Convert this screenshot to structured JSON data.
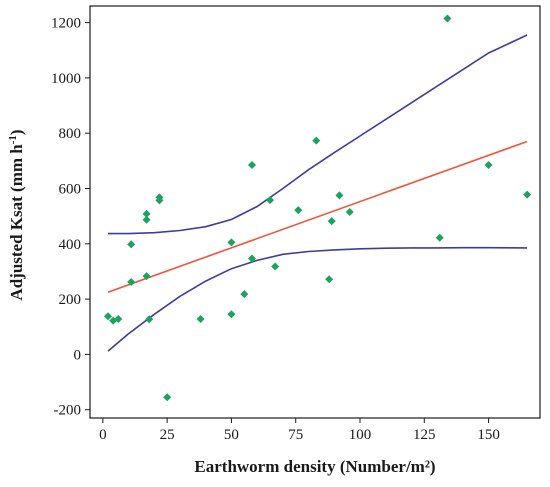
{
  "chart_data": {
    "type": "scatter",
    "xlabel": "Earthworm density (Number/m²)",
    "ylabel_main": "Adjusted Ksat (mm h",
    "ylabel_sup": "-1",
    "ylabel_close": ")",
    "xlim": [
      -5,
      170
    ],
    "ylim": [
      -230,
      1260
    ],
    "x_ticks": [
      0,
      25,
      50,
      75,
      100,
      125,
      150
    ],
    "y_ticks": [
      -200,
      0,
      200,
      400,
      600,
      800,
      1000,
      1200
    ],
    "x_tick_labels": [
      "0",
      "25",
      "50",
      "75",
      "100",
      "125",
      "150"
    ],
    "y_tick_labels": [
      "-200",
      "0",
      "200",
      "400",
      "600",
      "800",
      "1000",
      "1200"
    ],
    "grid": false,
    "points": [
      {
        "x": 2,
        "y": 138
      },
      {
        "x": 4,
        "y": 122
      },
      {
        "x": 6,
        "y": 128
      },
      {
        "x": 11,
        "y": 262
      },
      {
        "x": 11,
        "y": 398
      },
      {
        "x": 17,
        "y": 508
      },
      {
        "x": 17,
        "y": 487
      },
      {
        "x": 17,
        "y": 283
      },
      {
        "x": 18,
        "y": 127
      },
      {
        "x": 22,
        "y": 568
      },
      {
        "x": 22,
        "y": 557
      },
      {
        "x": 25,
        "y": -155
      },
      {
        "x": 38,
        "y": 128
      },
      {
        "x": 50,
        "y": 405
      },
      {
        "x": 50,
        "y": 145
      },
      {
        "x": 55,
        "y": 218
      },
      {
        "x": 58,
        "y": 347
      },
      {
        "x": 58,
        "y": 685
      },
      {
        "x": 65,
        "y": 558
      },
      {
        "x": 67,
        "y": 318
      },
      {
        "x": 76,
        "y": 522
      },
      {
        "x": 83,
        "y": 773
      },
      {
        "x": 88,
        "y": 272
      },
      {
        "x": 89,
        "y": 482
      },
      {
        "x": 92,
        "y": 575
      },
      {
        "x": 96,
        "y": 515
      },
      {
        "x": 131,
        "y": 422
      },
      {
        "x": 134,
        "y": 1215
      },
      {
        "x": 150,
        "y": 685
      },
      {
        "x": 165,
        "y": 578
      }
    ],
    "fit_line": {
      "x": [
        2,
        165
      ],
      "y": [
        225,
        770
      ]
    },
    "ci_upper": {
      "x": [
        2,
        10,
        20,
        30,
        40,
        50,
        60,
        70,
        80,
        90,
        100,
        110,
        120,
        130,
        140,
        150,
        165
      ],
      "y": [
        437,
        437,
        440,
        448,
        462,
        488,
        535,
        600,
        668,
        730,
        790,
        850,
        910,
        970,
        1030,
        1090,
        1155
      ]
    },
    "ci_lower": {
      "x": [
        2,
        10,
        20,
        30,
        40,
        50,
        60,
        70,
        80,
        90,
        100,
        110,
        120,
        130,
        140,
        150,
        165
      ],
      "y": [
        12,
        75,
        145,
        210,
        265,
        310,
        340,
        362,
        372,
        378,
        382,
        384,
        385,
        385,
        386,
        386,
        385
      ]
    },
    "colors": {
      "points": "#1aa35c",
      "fit_line": "#f0553a",
      "ci_lines": "#3d3d9e",
      "axes": "#1a1a1a"
    }
  }
}
